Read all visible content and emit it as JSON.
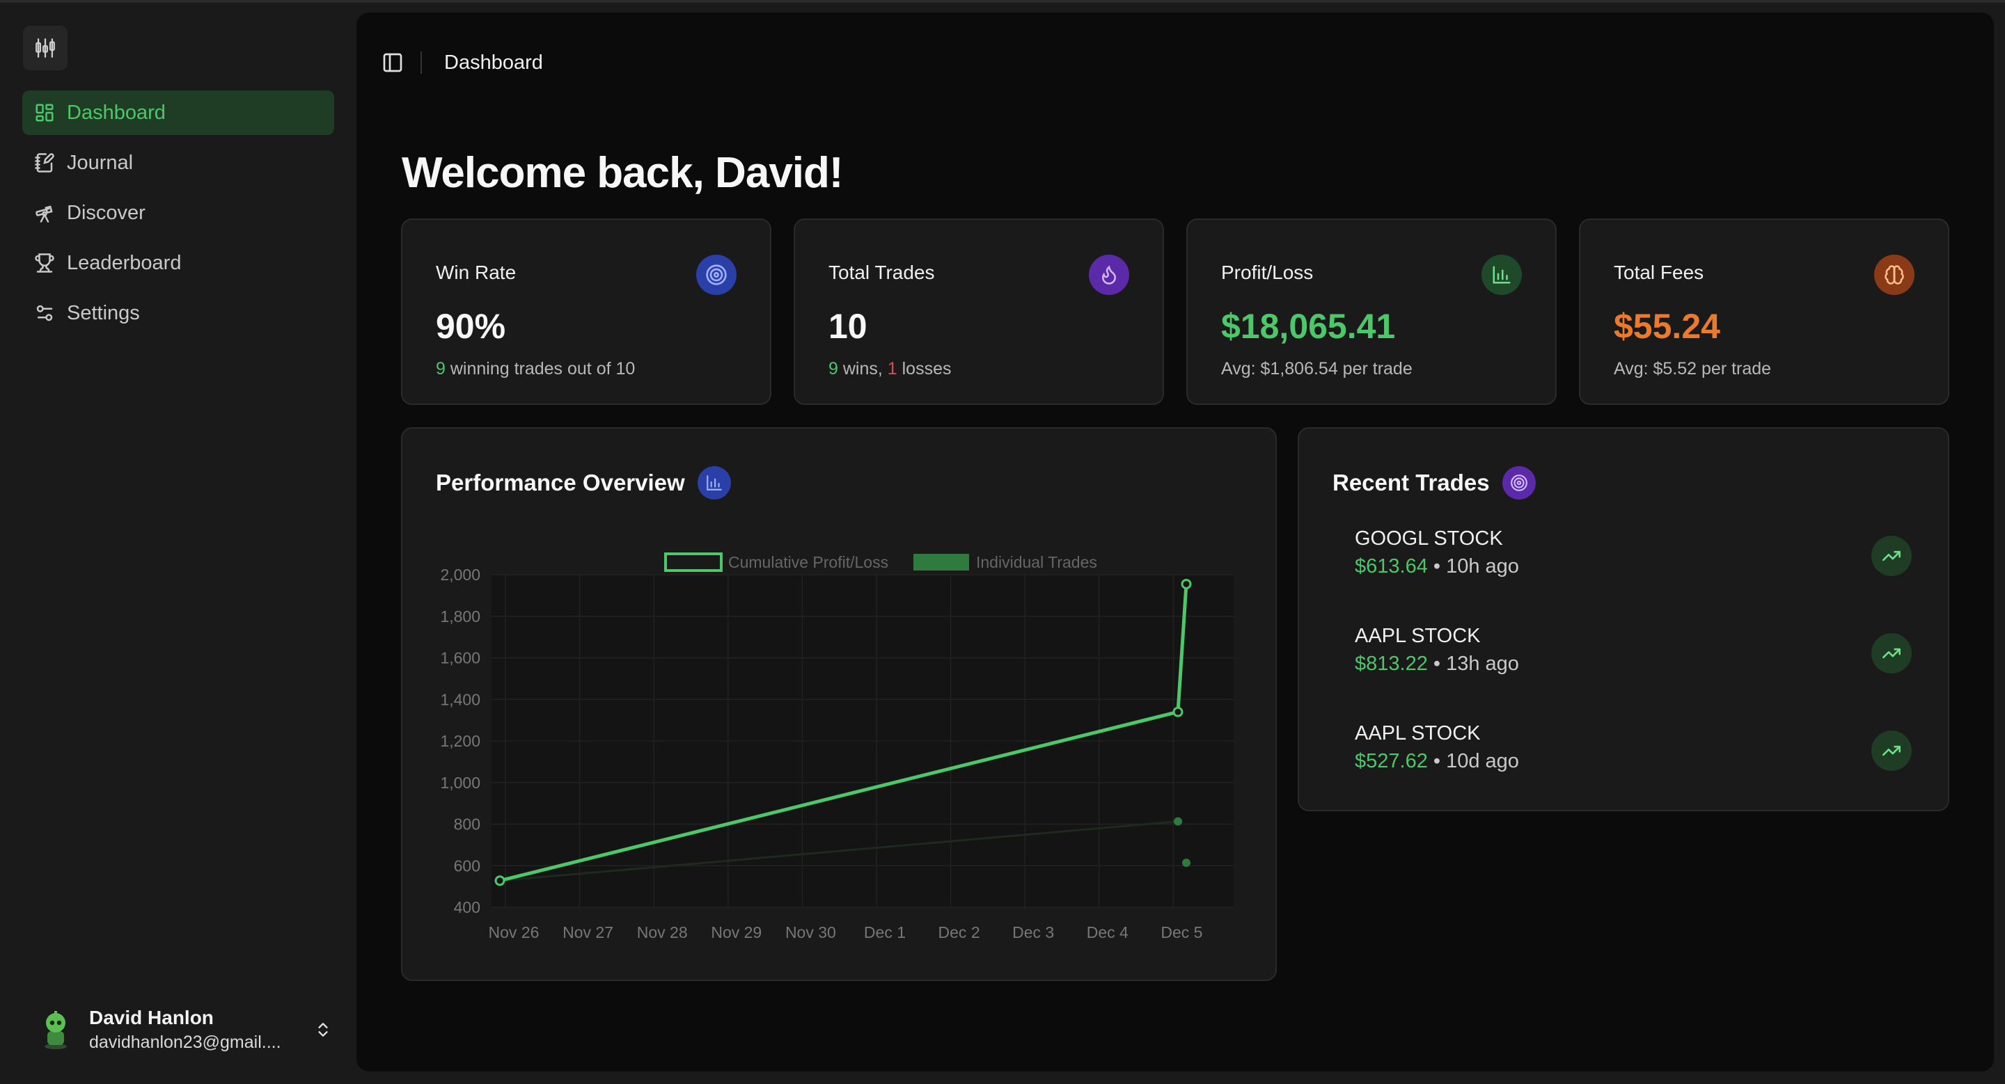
{
  "sidebar": {
    "logo_icon": "candlestick-icon",
    "items": [
      {
        "label": "Dashboard",
        "icon": "layout-grid-icon",
        "active": true
      },
      {
        "label": "Journal",
        "icon": "notebook-pen-icon",
        "active": false
      },
      {
        "label": "Discover",
        "icon": "telescope-icon",
        "active": false
      },
      {
        "label": "Leaderboard",
        "icon": "trophy-icon",
        "active": false
      },
      {
        "label": "Settings",
        "icon": "sliders-icon",
        "active": false
      }
    ],
    "user": {
      "name": "David Hanlon",
      "email": "davidhanlon23@gmail...."
    }
  },
  "header": {
    "toggle_icon": "sidebar-toggle-icon",
    "breadcrumb": "Dashboard"
  },
  "welcome": "Welcome back, David!",
  "stats": {
    "win_rate": {
      "label": "Win Rate",
      "value": "90%",
      "sub_count": "9",
      "sub_text": " winning trades out of 10",
      "icon": "target-icon",
      "badge_color": "#2b3fa8"
    },
    "total_trades": {
      "label": "Total Trades",
      "value": "10",
      "wins": "9",
      "wins_text": " wins, ",
      "losses": "1",
      "losses_text": " losses",
      "icon": "flame-icon",
      "badge_color": "#5b2aa8"
    },
    "profit_loss": {
      "label": "Profit/Loss",
      "value": "$18,065.41",
      "sub": "Avg: $1,806.54 per trade",
      "icon": "bar-chart-icon",
      "badge_color": "#1f4a2a"
    },
    "total_fees": {
      "label": "Total Fees",
      "value": "$55.24",
      "sub": "Avg: $5.52 per trade",
      "icon": "brain-icon",
      "badge_color": "#8a3a17"
    }
  },
  "performance": {
    "title": "Performance Overview",
    "icon": "bar-chart-icon"
  },
  "chart_data": {
    "type": "line",
    "categories": [
      "Nov 26",
      "Nov 27",
      "Nov 28",
      "Nov 29",
      "Nov 30",
      "Dec 1",
      "Dec 2",
      "Dec 3",
      "Dec 4",
      "Dec 5"
    ],
    "ylim": [
      400,
      2000
    ],
    "yticks": [
      "2,000",
      "1,800",
      "1,600",
      "1,400",
      "1,200",
      "1,000",
      "800",
      "600",
      "400"
    ],
    "grid": true,
    "legend_position": "top",
    "series": [
      {
        "name": "Cumulative Profit/Loss",
        "color": "#4cc76a",
        "points": [
          {
            "x": "Nov 26",
            "y": 528
          },
          {
            "x": "Dec 5",
            "y": 1340
          },
          {
            "x": "Dec 5",
            "y": 1955
          }
        ]
      },
      {
        "name": "Individual Trades",
        "color": "#2f7a3f",
        "points": [
          {
            "x": "Nov 26",
            "y": 528
          },
          {
            "x": "Dec 5",
            "y": 813
          },
          {
            "x": "Dec 5",
            "y": 614
          }
        ]
      }
    ]
  },
  "recent": {
    "title": "Recent Trades",
    "icon": "target-icon",
    "trades": [
      {
        "symbol": "GOOGL STOCK",
        "amount": "$613.64",
        "time": " • 10h ago",
        "icon": "trending-up-icon"
      },
      {
        "symbol": "AAPL STOCK",
        "amount": "$813.22",
        "time": " • 13h ago",
        "icon": "trending-up-icon"
      },
      {
        "symbol": "AAPL STOCK",
        "amount": "$527.62",
        "time": " • 10d ago",
        "icon": "trending-up-icon"
      }
    ]
  }
}
